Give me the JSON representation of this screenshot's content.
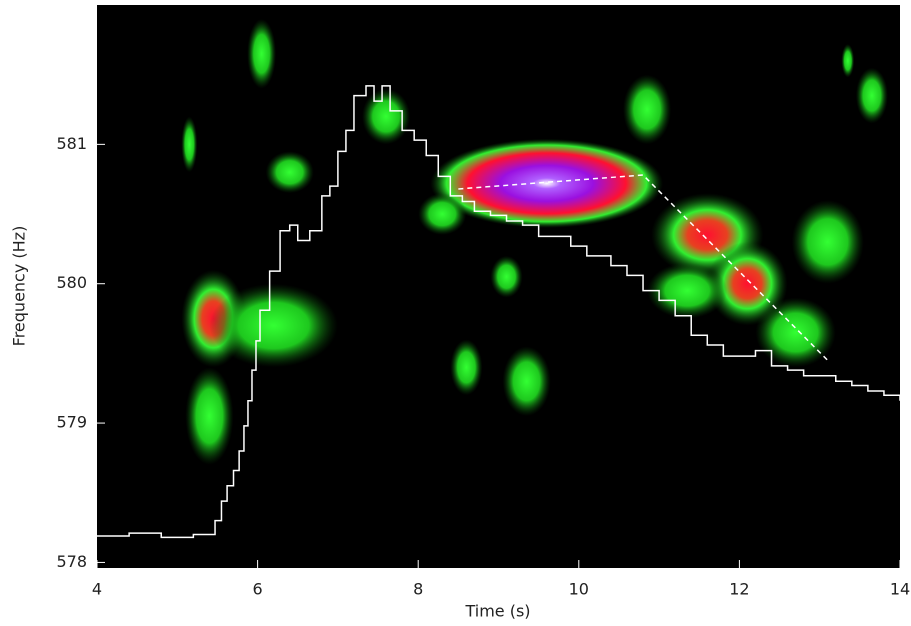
{
  "chart_data": {
    "type": "spectrogram",
    "xlabel": "Time (s)",
    "ylabel": "Frequency (Hz)",
    "xlim": [
      4,
      14
    ],
    "ylim": [
      577.96,
      582.0
    ],
    "xticks": [
      4,
      6,
      8,
      10,
      12,
      14
    ],
    "yticks": [
      578,
      579,
      580,
      581
    ],
    "blobs": {
      "x": [
        9.6,
        11.6,
        12.1,
        12.7,
        5.45,
        5.4,
        6.2,
        6.05,
        6.4,
        8.3,
        7.6,
        5.15,
        9.35,
        8.6,
        9.1,
        10.85,
        13.65,
        13.35,
        11.35,
        13.1
      ],
      "y": [
        580.72,
        580.35,
        580.0,
        579.65,
        579.75,
        579.05,
        579.7,
        581.65,
        580.8,
        580.5,
        581.2,
        581.0,
        579.3,
        579.4,
        580.05,
        581.25,
        581.35,
        581.6,
        579.95,
        580.3
      ],
      "rx": [
        1.45,
        0.7,
        0.5,
        0.5,
        0.4,
        0.3,
        0.8,
        0.18,
        0.3,
        0.3,
        0.3,
        0.1,
        0.3,
        0.2,
        0.2,
        0.3,
        0.2,
        0.08,
        0.5,
        0.45
      ],
      "ry": [
        0.32,
        0.3,
        0.3,
        0.25,
        0.35,
        0.35,
        0.3,
        0.25,
        0.15,
        0.15,
        0.2,
        0.2,
        0.25,
        0.2,
        0.15,
        0.25,
        0.2,
        0.12,
        0.2,
        0.3
      ],
      "level": [
        4,
        2,
        2,
        1,
        2,
        1,
        1,
        1,
        1,
        1,
        1,
        1,
        1,
        1,
        1,
        1,
        1,
        1,
        1,
        1
      ]
    },
    "series": [
      {
        "color": "#ffffff",
        "style": "step",
        "x": [
          4.0,
          4.4,
          4.8,
          5.2,
          5.47,
          5.55,
          5.62,
          5.7,
          5.77,
          5.83,
          5.88,
          5.93,
          5.98,
          6.03,
          6.15,
          6.28,
          6.4,
          6.5,
          6.65,
          6.8,
          6.9,
          7.0,
          7.1,
          7.2,
          7.35,
          7.45,
          7.55,
          7.65,
          7.8,
          7.95,
          8.1,
          8.25,
          8.4,
          8.55,
          8.7,
          8.9,
          9.1,
          9.3,
          9.5,
          9.7,
          9.9,
          10.1,
          10.4,
          10.6,
          10.8,
          11.0,
          11.2,
          11.4,
          11.6,
          11.8,
          12.0,
          12.2,
          12.4,
          12.6,
          12.8,
          13.0,
          13.2,
          13.4,
          13.6,
          13.8,
          14.0
        ],
        "values": [
          578.19,
          578.21,
          578.18,
          578.2,
          578.3,
          578.44,
          578.55,
          578.66,
          578.8,
          578.98,
          579.16,
          579.38,
          579.59,
          579.81,
          580.09,
          580.38,
          580.42,
          580.31,
          580.38,
          580.63,
          580.7,
          580.95,
          581.1,
          581.35,
          581.42,
          581.31,
          581.42,
          581.24,
          581.1,
          581.03,
          580.92,
          580.77,
          580.63,
          580.59,
          580.52,
          580.49,
          580.45,
          580.42,
          580.34,
          580.34,
          580.27,
          580.2,
          580.13,
          580.06,
          579.95,
          579.88,
          579.77,
          579.63,
          579.56,
          579.48,
          579.48,
          579.52,
          579.41,
          579.38,
          579.34,
          579.34,
          579.3,
          579.27,
          579.23,
          579.2,
          579.16
        ]
      },
      {
        "color": "#ffffff",
        "style": "dashed",
        "x": [
          8.5,
          10.8,
          13.1
        ],
        "values": [
          580.68,
          580.78,
          579.45
        ]
      }
    ]
  }
}
